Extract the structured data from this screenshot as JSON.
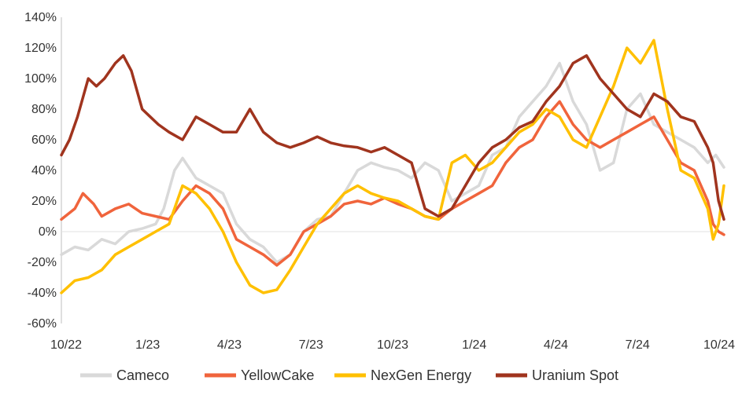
{
  "chart_data": {
    "type": "line",
    "title": "",
    "xlabel": "",
    "ylabel": "",
    "ylim": [
      -60,
      140
    ],
    "y_ticks": [
      -60,
      -40,
      -20,
      0,
      20,
      40,
      60,
      80,
      100,
      120,
      140
    ],
    "y_tick_labels": [
      "-60%",
      "-40%",
      "-20%",
      "0%",
      "20%",
      "40%",
      "60%",
      "80%",
      "100%",
      "120%",
      "140%"
    ],
    "x_tick_labels": [
      "10/22",
      "1/23",
      "4/23",
      "7/23",
      "10/23",
      "1/24",
      "4/24",
      "7/24",
      "10/24"
    ],
    "x_range": [
      0,
      24.6
    ],
    "x_unit": "months since 10/22",
    "grid": false,
    "legend_position": "bottom",
    "series": [
      {
        "name": "Cameco",
        "color": "#d9d9d9",
        "points": [
          [
            0,
            -15
          ],
          [
            0.5,
            -10
          ],
          [
            1,
            -12
          ],
          [
            1.5,
            -5
          ],
          [
            2,
            -8
          ],
          [
            2.5,
            0
          ],
          [
            3,
            2
          ],
          [
            3.5,
            5
          ],
          [
            3.8,
            15
          ],
          [
            4.2,
            40
          ],
          [
            4.5,
            48
          ],
          [
            5,
            35
          ],
          [
            5.5,
            30
          ],
          [
            6,
            25
          ],
          [
            6.5,
            5
          ],
          [
            7,
            -5
          ],
          [
            7.5,
            -10
          ],
          [
            8,
            -20
          ],
          [
            8.5,
            -15
          ],
          [
            9,
            0
          ],
          [
            9.5,
            8
          ],
          [
            10,
            10
          ],
          [
            10.5,
            25
          ],
          [
            11,
            40
          ],
          [
            11.5,
            45
          ],
          [
            12,
            42
          ],
          [
            12.5,
            40
          ],
          [
            13,
            35
          ],
          [
            13.5,
            45
          ],
          [
            14,
            40
          ],
          [
            14.5,
            20
          ],
          [
            15,
            25
          ],
          [
            15.5,
            30
          ],
          [
            16,
            50
          ],
          [
            16.5,
            55
          ],
          [
            17,
            75
          ],
          [
            17.5,
            85
          ],
          [
            18,
            95
          ],
          [
            18.5,
            110
          ],
          [
            19,
            85
          ],
          [
            19.5,
            70
          ],
          [
            20,
            40
          ],
          [
            20.5,
            45
          ],
          [
            21,
            80
          ],
          [
            21.5,
            90
          ],
          [
            22,
            70
          ],
          [
            22.5,
            65
          ],
          [
            23,
            60
          ],
          [
            23.5,
            55
          ],
          [
            24,
            45
          ],
          [
            24.3,
            50
          ],
          [
            24.6,
            42
          ]
        ]
      },
      {
        "name": "YellowCake",
        "color": "#f0643c",
        "points": [
          [
            0,
            8
          ],
          [
            0.5,
            15
          ],
          [
            0.8,
            25
          ],
          [
            1.2,
            18
          ],
          [
            1.5,
            10
          ],
          [
            2,
            15
          ],
          [
            2.5,
            18
          ],
          [
            3,
            12
          ],
          [
            3.5,
            10
          ],
          [
            4,
            8
          ],
          [
            4.5,
            20
          ],
          [
            5,
            30
          ],
          [
            5.5,
            25
          ],
          [
            6,
            15
          ],
          [
            6.5,
            -5
          ],
          [
            7,
            -10
          ],
          [
            7.5,
            -15
          ],
          [
            8,
            -22
          ],
          [
            8.5,
            -15
          ],
          [
            9,
            0
          ],
          [
            9.5,
            5
          ],
          [
            10,
            10
          ],
          [
            10.5,
            18
          ],
          [
            11,
            20
          ],
          [
            11.5,
            18
          ],
          [
            12,
            22
          ],
          [
            12.5,
            18
          ],
          [
            13,
            15
          ],
          [
            13.5,
            10
          ],
          [
            14,
            8
          ],
          [
            14.5,
            15
          ],
          [
            15,
            20
          ],
          [
            15.5,
            25
          ],
          [
            16,
            30
          ],
          [
            16.5,
            45
          ],
          [
            17,
            55
          ],
          [
            17.5,
            60
          ],
          [
            18,
            75
          ],
          [
            18.5,
            85
          ],
          [
            19,
            70
          ],
          [
            19.5,
            60
          ],
          [
            20,
            55
          ],
          [
            20.5,
            60
          ],
          [
            21,
            65
          ],
          [
            21.5,
            70
          ],
          [
            22,
            75
          ],
          [
            22.5,
            60
          ],
          [
            23,
            45
          ],
          [
            23.5,
            40
          ],
          [
            24,
            20
          ],
          [
            24.2,
            5
          ],
          [
            24.4,
            0
          ],
          [
            24.6,
            -2
          ]
        ]
      },
      {
        "name": "NexGen Energy",
        "color": "#ffc000",
        "points": [
          [
            0,
            -40
          ],
          [
            0.5,
            -32
          ],
          [
            1,
            -30
          ],
          [
            1.5,
            -25
          ],
          [
            2,
            -15
          ],
          [
            2.5,
            -10
          ],
          [
            3,
            -5
          ],
          [
            3.5,
            0
          ],
          [
            4,
            5
          ],
          [
            4.5,
            30
          ],
          [
            5,
            25
          ],
          [
            5.5,
            15
          ],
          [
            6,
            0
          ],
          [
            6.5,
            -20
          ],
          [
            7,
            -35
          ],
          [
            7.5,
            -40
          ],
          [
            8,
            -38
          ],
          [
            8.5,
            -25
          ],
          [
            9,
            -10
          ],
          [
            9.5,
            5
          ],
          [
            10,
            15
          ],
          [
            10.5,
            25
          ],
          [
            11,
            30
          ],
          [
            11.5,
            25
          ],
          [
            12,
            22
          ],
          [
            12.5,
            20
          ],
          [
            13,
            15
          ],
          [
            13.5,
            10
          ],
          [
            14,
            8
          ],
          [
            14.5,
            45
          ],
          [
            15,
            50
          ],
          [
            15.5,
            40
          ],
          [
            16,
            45
          ],
          [
            16.5,
            55
          ],
          [
            17,
            65
          ],
          [
            17.5,
            70
          ],
          [
            18,
            80
          ],
          [
            18.5,
            75
          ],
          [
            19,
            60
          ],
          [
            19.5,
            55
          ],
          [
            20,
            75
          ],
          [
            20.5,
            95
          ],
          [
            21,
            120
          ],
          [
            21.5,
            110
          ],
          [
            22,
            125
          ],
          [
            22.5,
            80
          ],
          [
            23,
            40
          ],
          [
            23.5,
            35
          ],
          [
            24,
            15
          ],
          [
            24.2,
            -5
          ],
          [
            24.4,
            5
          ],
          [
            24.6,
            30
          ]
        ]
      },
      {
        "name": "Uranium Spot",
        "color": "#a0341e",
        "points": [
          [
            0,
            50
          ],
          [
            0.3,
            60
          ],
          [
            0.6,
            75
          ],
          [
            1,
            100
          ],
          [
            1.3,
            95
          ],
          [
            1.6,
            100
          ],
          [
            2,
            110
          ],
          [
            2.3,
            115
          ],
          [
            2.6,
            105
          ],
          [
            3,
            80
          ],
          [
            3.3,
            75
          ],
          [
            3.6,
            70
          ],
          [
            4,
            65
          ],
          [
            4.5,
            60
          ],
          [
            5,
            75
          ],
          [
            5.5,
            70
          ],
          [
            6,
            65
          ],
          [
            6.5,
            65
          ],
          [
            7,
            80
          ],
          [
            7.5,
            65
          ],
          [
            8,
            58
          ],
          [
            8.5,
            55
          ],
          [
            9,
            58
          ],
          [
            9.5,
            62
          ],
          [
            10,
            58
          ],
          [
            10.5,
            56
          ],
          [
            11,
            55
          ],
          [
            11.5,
            52
          ],
          [
            12,
            55
          ],
          [
            12.5,
            50
          ],
          [
            13,
            45
          ],
          [
            13.5,
            15
          ],
          [
            14,
            10
          ],
          [
            14.5,
            15
          ],
          [
            15,
            30
          ],
          [
            15.5,
            45
          ],
          [
            16,
            55
          ],
          [
            16.5,
            60
          ],
          [
            17,
            68
          ],
          [
            17.5,
            72
          ],
          [
            18,
            85
          ],
          [
            18.5,
            95
          ],
          [
            19,
            110
          ],
          [
            19.5,
            115
          ],
          [
            20,
            100
          ],
          [
            20.5,
            90
          ],
          [
            21,
            80
          ],
          [
            21.5,
            75
          ],
          [
            22,
            90
          ],
          [
            22.5,
            85
          ],
          [
            23,
            75
          ],
          [
            23.5,
            72
          ],
          [
            24,
            55
          ],
          [
            24.2,
            45
          ],
          [
            24.4,
            20
          ],
          [
            24.6,
            8
          ]
        ]
      }
    ]
  }
}
